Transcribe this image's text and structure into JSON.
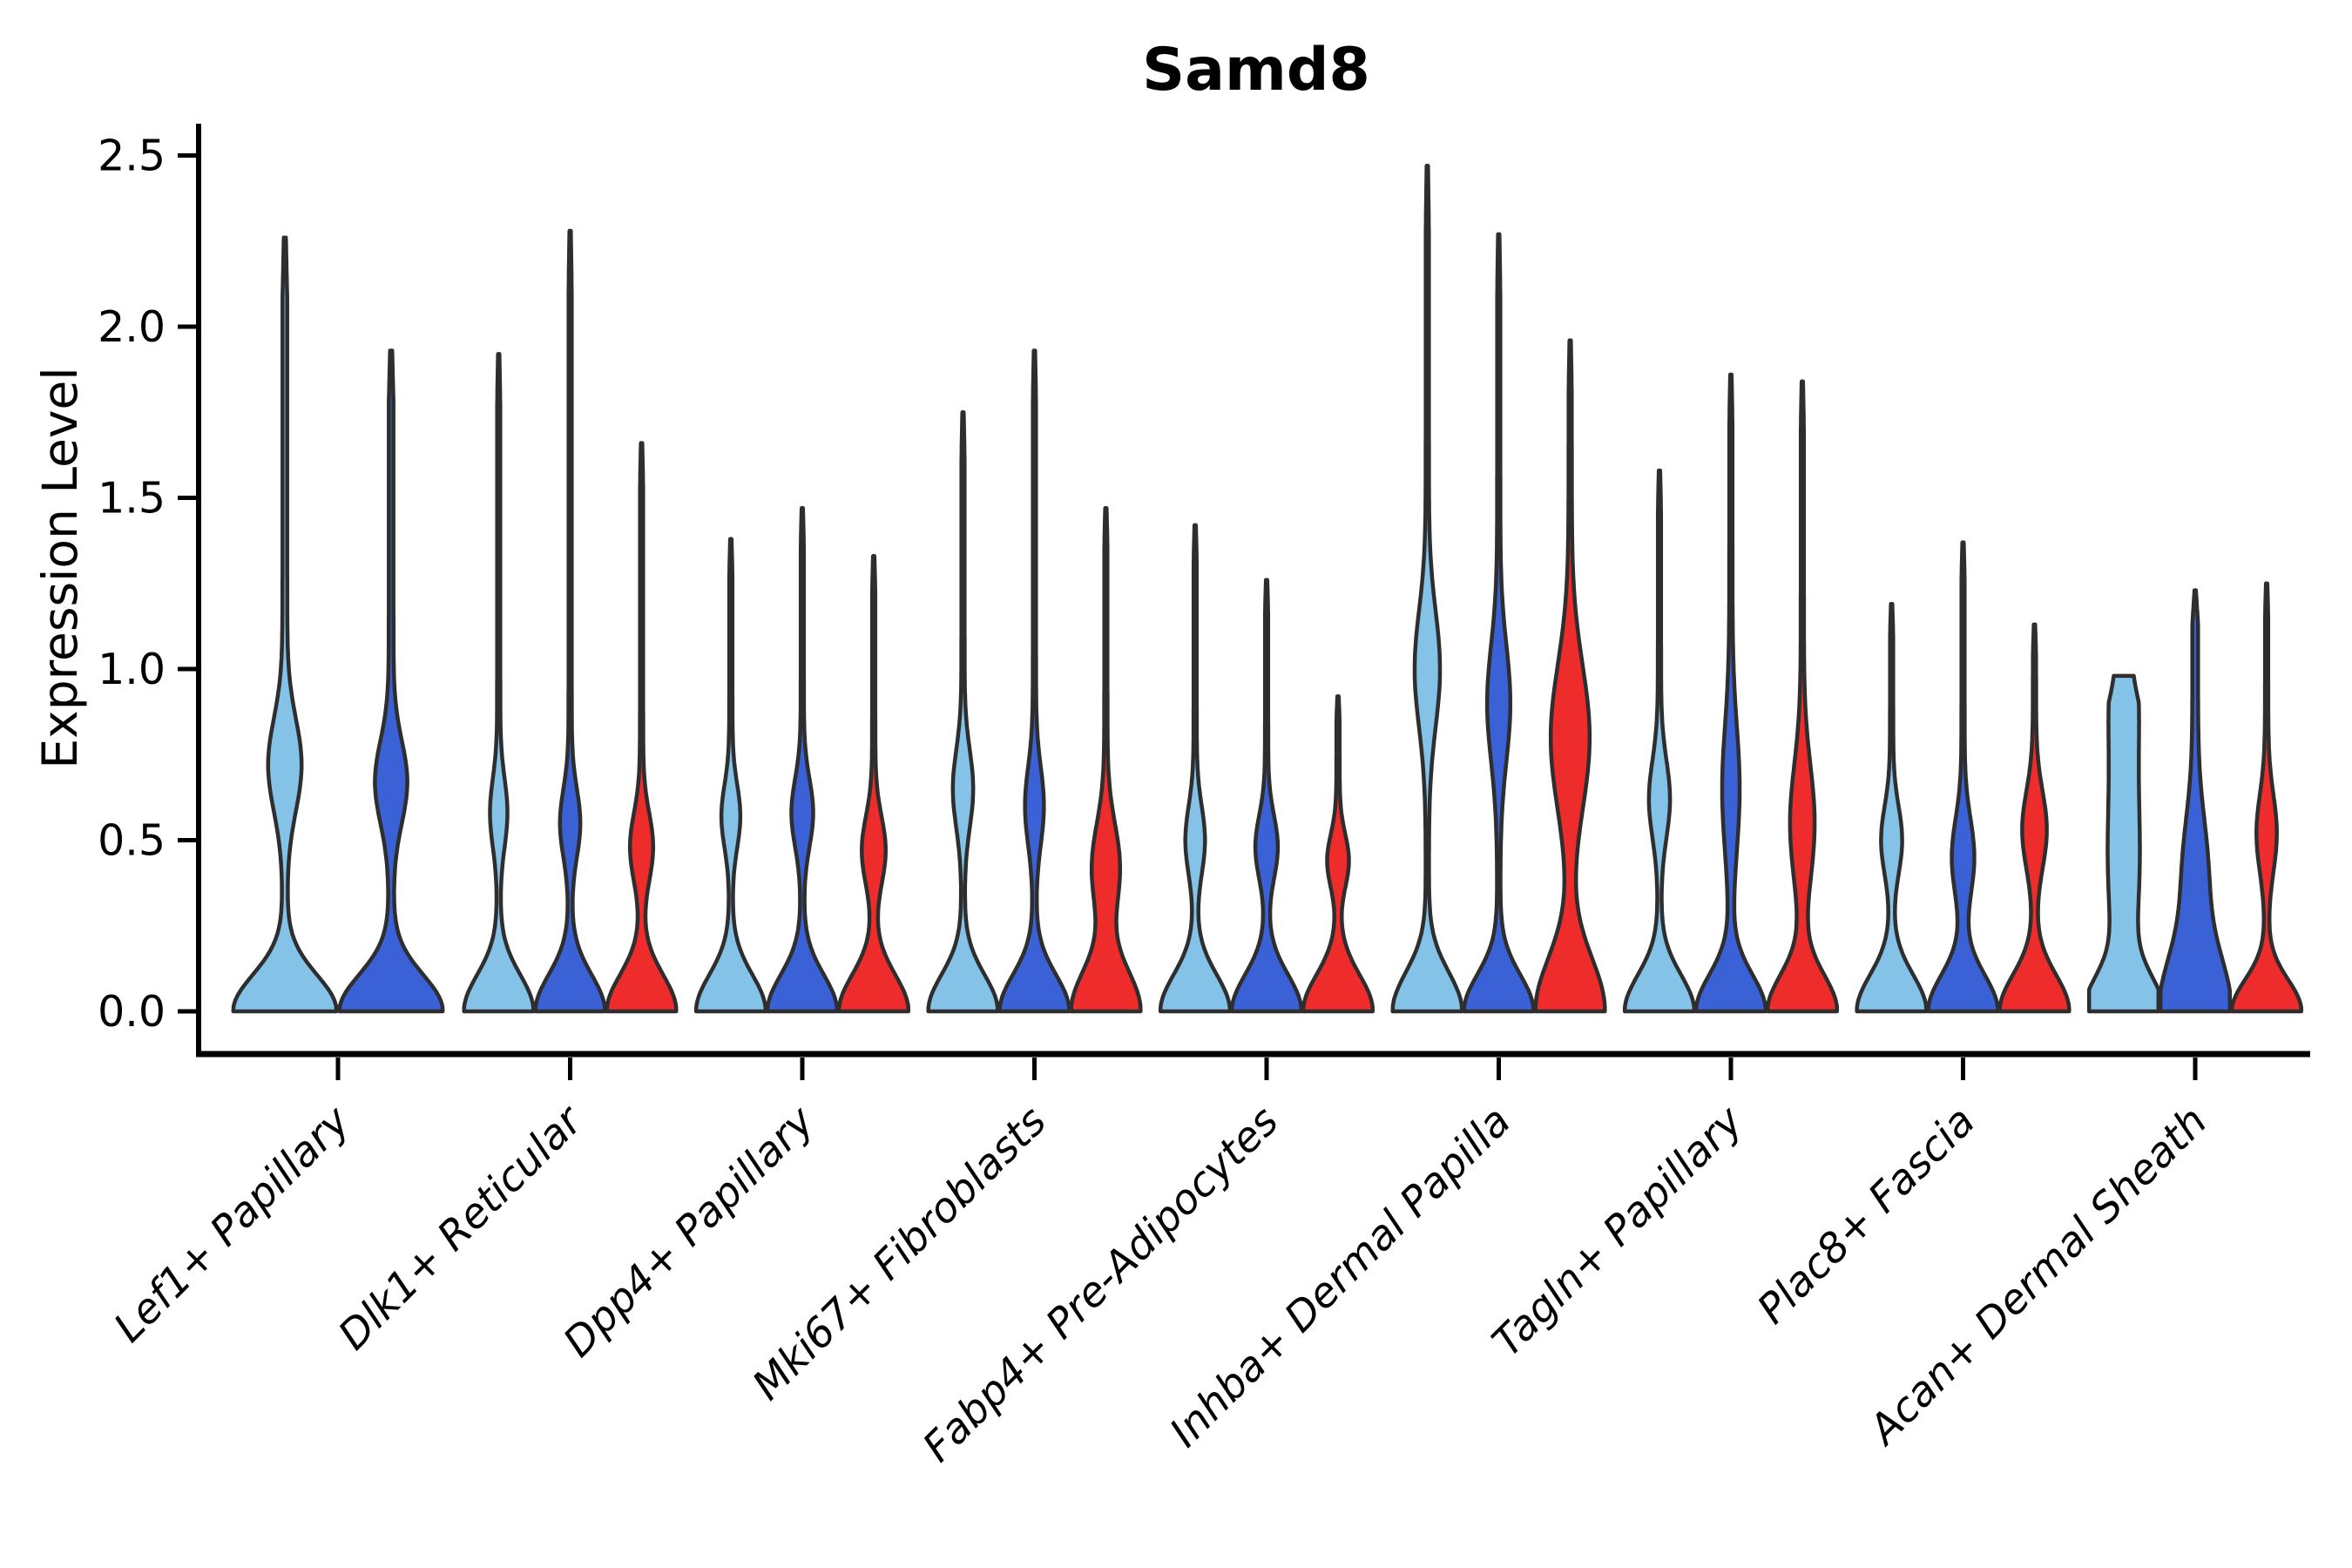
{
  "title": "Samd8",
  "ylabel": "Expression Level",
  "chart_data": {
    "type": "violin",
    "title": "Samd8",
    "xlabel": "",
    "ylabel": "Expression Level",
    "ylim": [
      -0.12,
      2.59
    ],
    "grid": false,
    "legend": "none",
    "x_tick_rotation": 45,
    "ytick_labels": [
      "0.0",
      "0.5",
      "1.0",
      "1.5",
      "2.0",
      "2.5"
    ],
    "ytick_values": [
      0.0,
      0.5,
      1.0,
      1.5,
      2.0,
      2.5
    ],
    "categories": [
      "Lef1+ Papillary",
      "Dlk1+ Reticular",
      "Dpp4+ Papillary",
      "Mki67+ Fibroblasts",
      "Fabp4+ Pre-Adipocytes",
      "Inhba+ Dermal Papilla",
      "Tagln+ Papillary",
      "Plac8+ Fascia",
      "Acan+ Dermal Sheath"
    ],
    "split_colors": [
      "#84C2E8",
      "#3B61D6",
      "#EE2C2C"
    ],
    "outline_color": "#2E2E2E",
    "axis_color": "#000000",
    "groups": [
      {
        "category": "Lef1+ Papillary",
        "violins": [
          {
            "split": 0,
            "max": 2.26,
            "bulge_center": 0.72,
            "bulge_amp": 0.27,
            "bulge_sigma": 0.19
          },
          {
            "split": 1,
            "max": 1.93,
            "bulge_center": 0.67,
            "bulge_amp": 0.26,
            "bulge_sigma": 0.17
          }
        ]
      },
      {
        "category": "Dlk1+ Reticular",
        "violins": [
          {
            "split": 0,
            "max": 1.92,
            "bulge_center": 0.58,
            "bulge_amp": 0.2,
            "bulge_sigma": 0.14
          },
          {
            "split": 1,
            "max": 2.28,
            "bulge_center": 0.55,
            "bulge_amp": 0.24,
            "bulge_sigma": 0.14
          },
          {
            "split": 2,
            "max": 1.66,
            "bulge_center": 0.48,
            "bulge_amp": 0.28,
            "bulge_sigma": 0.14
          }
        ]
      },
      {
        "category": "Dpp4+ Papillary",
        "violins": [
          {
            "split": 0,
            "max": 1.38,
            "bulge_center": 0.57,
            "bulge_amp": 0.22,
            "bulge_sigma": 0.13
          },
          {
            "split": 1,
            "max": 1.47,
            "bulge_center": 0.58,
            "bulge_amp": 0.26,
            "bulge_sigma": 0.14
          },
          {
            "split": 2,
            "max": 1.33,
            "bulge_center": 0.47,
            "bulge_amp": 0.29,
            "bulge_sigma": 0.14
          }
        ]
      },
      {
        "category": "Mki67+ Fibroblasts",
        "violins": [
          {
            "split": 0,
            "max": 1.75,
            "bulge_center": 0.65,
            "bulge_amp": 0.24,
            "bulge_sigma": 0.16
          },
          {
            "split": 1,
            "max": 1.93,
            "bulge_center": 0.6,
            "bulge_amp": 0.22,
            "bulge_sigma": 0.16
          },
          {
            "split": 2,
            "max": 1.47,
            "bulge_center": 0.42,
            "bulge_amp": 0.35,
            "bulge_sigma": 0.18,
            "base_sigma": 0.17
          }
        ]
      },
      {
        "category": "Fabp4+ Pre-Adipocytes",
        "violins": [
          {
            "split": 0,
            "max": 1.42,
            "bulge_center": 0.5,
            "bulge_amp": 0.23,
            "bulge_sigma": 0.14
          },
          {
            "split": 1,
            "max": 1.26,
            "bulge_center": 0.48,
            "bulge_amp": 0.27,
            "bulge_sigma": 0.13
          },
          {
            "split": 2,
            "max": 0.92,
            "bulge_center": 0.44,
            "bulge_amp": 0.26,
            "bulge_sigma": 0.11
          }
        ]
      },
      {
        "category": "Inhba+ Dermal Papilla",
        "violins": [
          {
            "split": 0,
            "max": 2.47,
            "bulge_center": 1.0,
            "bulge_amp": 0.31,
            "bulge_sigma": 0.24,
            "base_sigma": 0.16
          },
          {
            "split": 1,
            "max": 2.27,
            "bulge_center": 0.9,
            "bulge_amp": 0.28,
            "bulge_sigma": 0.24
          },
          {
            "split": 2,
            "max": 1.96,
            "bulge_center": 0.8,
            "bulge_amp": 0.5,
            "bulge_sigma": 0.3,
            "base_sigma": 0.22
          }
        ]
      },
      {
        "category": "Tagln+ Papillary",
        "violins": [
          {
            "split": 0,
            "max": 1.58,
            "bulge_center": 0.62,
            "bulge_amp": 0.25,
            "bulge_sigma": 0.16
          },
          {
            "split": 1,
            "max": 1.86,
            "bulge_center": 0.65,
            "bulge_amp": 0.2,
            "bulge_sigma": 0.26
          },
          {
            "split": 2,
            "max": 1.84,
            "bulge_center": 0.55,
            "bulge_amp": 0.3,
            "bulge_sigma": 0.24
          }
        ]
      },
      {
        "category": "Plac8+ Fascia",
        "violins": [
          {
            "split": 0,
            "max": 1.19,
            "bulge_center": 0.5,
            "bulge_amp": 0.25,
            "bulge_sigma": 0.14
          },
          {
            "split": 1,
            "max": 1.37,
            "bulge_center": 0.45,
            "bulge_amp": 0.27,
            "bulge_sigma": 0.16
          },
          {
            "split": 2,
            "max": 1.13,
            "bulge_center": 0.53,
            "bulge_amp": 0.3,
            "bulge_sigma": 0.16
          }
        ]
      },
      {
        "category": "Acan+ Dermal Sheath",
        "violins": [
          {
            "split": 0,
            "max": 0.98,
            "bulge_center": 0.45,
            "bulge_amp": 0.4,
            "bulge_sigma": 0.42,
            "bulge2_center": 0.95,
            "bulge2_amp": 0.26,
            "bulge2_sigma": 0.25,
            "tip_width": 0.28,
            "base_sigma": 0.14
          },
          {
            "split": 1,
            "max": 1.23,
            "bulge_center": 0.42,
            "bulge_amp": 0.26,
            "bulge_sigma": 0.22,
            "base_sigma": 0.24,
            "stem_width": 0.08
          },
          {
            "split": 2,
            "max": 1.25,
            "bulge_center": 0.52,
            "bulge_amp": 0.24,
            "bulge_sigma": 0.16,
            "base_sigma": 0.13
          }
        ]
      }
    ]
  }
}
